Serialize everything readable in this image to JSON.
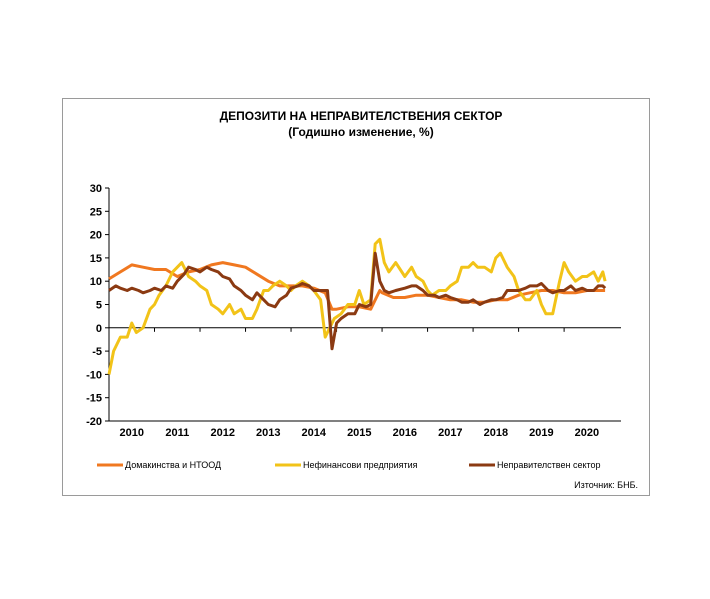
{
  "chart_data": {
    "type": "line",
    "title": "ДЕПОЗИТИ НА НЕПРАВИТЕЛСТВЕНИЯ СЕКТОР",
    "subtitle": "(Годишно изменение, %)",
    "source": "Източник: БНБ.",
    "ylim": [
      -20,
      30
    ],
    "yticks": [
      "30",
      "25",
      "20",
      "15",
      "10",
      "5",
      "0",
      "-5",
      "-10",
      "-15",
      "-20"
    ],
    "xlim": [
      2009.5,
      2020.75
    ],
    "xticks": [
      {
        "label": "2010",
        "x": 2010.0
      },
      {
        "label": "2011",
        "x": 2011.0
      },
      {
        "label": "2012",
        "x": 2012.0
      },
      {
        "label": "2013",
        "x": 2013.0
      },
      {
        "label": "2014",
        "x": 2014.0
      },
      {
        "label": "2015",
        "x": 2015.0
      },
      {
        "label": "2016",
        "x": 2016.0
      },
      {
        "label": "2017",
        "x": 2017.0
      },
      {
        "label": "2018",
        "x": 2018.0
      },
      {
        "label": "2019",
        "x": 2019.0
      },
      {
        "label": "2020",
        "x": 2020.0
      }
    ],
    "grid": false,
    "legend_position": "bottom",
    "series": [
      {
        "name": "Домакинства и НТООД",
        "color": "#F07820",
        "x": [
          2009.5,
          2009.75,
          2010.0,
          2010.25,
          2010.5,
          2010.75,
          2011.0,
          2011.25,
          2011.5,
          2011.75,
          2012.0,
          2012.25,
          2012.5,
          2012.75,
          2013.0,
          2013.25,
          2013.5,
          2013.75,
          2014.0,
          2014.25,
          2014.4,
          2014.5,
          2014.75,
          2015.0,
          2015.25,
          2015.45,
          2015.5,
          2015.75,
          2016.0,
          2016.25,
          2016.5,
          2016.75,
          2017.0,
          2017.25,
          2017.5,
          2017.75,
          2018.0,
          2018.25,
          2018.5,
          2018.75,
          2019.0,
          2019.25,
          2019.5,
          2019.75,
          2020.0,
          2020.25,
          2020.4
        ],
        "y": [
          10.5,
          12,
          13.5,
          13,
          12.5,
          12.5,
          11,
          12,
          12.5,
          13.5,
          14,
          13.5,
          13,
          11.5,
          10,
          9,
          9,
          9,
          8.5,
          7.5,
          4,
          4,
          4.5,
          4.5,
          4,
          8,
          7.5,
          6.5,
          6.5,
          7,
          7,
          6.5,
          6,
          6,
          5.5,
          5.5,
          6,
          6,
          7,
          7.5,
          8,
          8,
          7.5,
          7.5,
          8,
          8,
          8
        ]
      },
      {
        "name": "Нефинансови предприятия",
        "color": "#F2C318",
        "x": [
          2009.5,
          2009.6,
          2009.75,
          2009.9,
          2010.0,
          2010.1,
          2010.25,
          2010.4,
          2010.5,
          2010.6,
          2010.75,
          2010.9,
          2011.0,
          2011.1,
          2011.25,
          2011.4,
          2011.5,
          2011.65,
          2011.75,
          2011.9,
          2012.0,
          2012.15,
          2012.25,
          2012.4,
          2012.5,
          2012.65,
          2012.75,
          2012.9,
          2013.0,
          2013.1,
          2013.25,
          2013.4,
          2013.5,
          2013.6,
          2013.75,
          2013.9,
          2014.0,
          2014.15,
          2014.25,
          2014.35,
          2014.45,
          2014.6,
          2014.75,
          2014.9,
          2015.0,
          2015.1,
          2015.25,
          2015.35,
          2015.45,
          2015.55,
          2015.65,
          2015.8,
          2016.0,
          2016.15,
          2016.25,
          2016.4,
          2016.5,
          2016.6,
          2016.75,
          2016.9,
          2017.0,
          2017.15,
          2017.25,
          2017.4,
          2017.5,
          2017.6,
          2017.75,
          2017.9,
          2018.0,
          2018.1,
          2018.25,
          2018.4,
          2018.5,
          2018.65,
          2018.75,
          2018.9,
          2019.0,
          2019.1,
          2019.25,
          2019.4,
          2019.5,
          2019.6,
          2019.75,
          2019.9,
          2020.0,
          2020.15,
          2020.25,
          2020.35,
          2020.4
        ],
        "y": [
          -10,
          -5,
          -2,
          -2,
          1,
          -1,
          0,
          4,
          5,
          7,
          9,
          12,
          13,
          14,
          11,
          10,
          9,
          8,
          5,
          4,
          3,
          5,
          3,
          4,
          2,
          2,
          4,
          8,
          8,
          9,
          10,
          9,
          8,
          9,
          10,
          9,
          8,
          6,
          -2,
          0,
          2,
          3,
          5,
          5,
          8,
          5,
          6,
          18,
          19,
          14,
          12,
          14,
          11,
          13,
          11,
          10,
          8,
          7,
          8,
          8,
          9,
          10,
          13,
          13,
          14,
          13,
          13,
          12,
          15,
          16,
          13,
          11,
          8,
          6,
          6,
          8,
          5,
          3,
          3,
          10,
          14,
          12,
          10,
          11,
          11,
          12,
          10,
          12,
          10
        ]
      },
      {
        "name": "Неправителствен сектор",
        "color": "#8B3A12",
        "x": [
          2009.5,
          2009.65,
          2009.75,
          2009.9,
          2010.0,
          2010.15,
          2010.25,
          2010.4,
          2010.5,
          2010.65,
          2010.75,
          2010.9,
          2011.0,
          2011.15,
          2011.25,
          2011.4,
          2011.5,
          2011.65,
          2011.75,
          2011.9,
          2012.0,
          2012.15,
          2012.25,
          2012.4,
          2012.5,
          2012.65,
          2012.75,
          2012.9,
          2013.0,
          2013.15,
          2013.25,
          2013.4,
          2013.5,
          2013.65,
          2013.75,
          2013.9,
          2014.0,
          2014.15,
          2014.3,
          2014.4,
          2014.5,
          2014.6,
          2014.75,
          2014.9,
          2015.0,
          2015.15,
          2015.25,
          2015.35,
          2015.45,
          2015.55,
          2015.65,
          2015.8,
          2016.0,
          2016.15,
          2016.25,
          2016.4,
          2016.5,
          2016.65,
          2016.75,
          2016.9,
          2017.0,
          2017.15,
          2017.25,
          2017.4,
          2017.5,
          2017.65,
          2017.75,
          2017.9,
          2018.0,
          2018.15,
          2018.25,
          2018.4,
          2018.5,
          2018.65,
          2018.75,
          2018.9,
          2019.0,
          2019.15,
          2019.25,
          2019.4,
          2019.5,
          2019.65,
          2019.75,
          2019.9,
          2020.0,
          2020.15,
          2020.25,
          2020.35,
          2020.4
        ],
        "y": [
          8,
          9,
          8.5,
          8,
          8.5,
          8,
          7.5,
          8,
          8.5,
          8,
          9,
          8.5,
          10,
          11.5,
          13,
          12.5,
          12,
          13,
          12.5,
          12,
          11,
          10.5,
          9,
          8,
          7,
          6,
          7.5,
          6,
          5,
          4.5,
          6,
          7,
          8.5,
          9,
          9.5,
          9,
          8,
          8,
          8,
          -4.5,
          1,
          2,
          3,
          3,
          5,
          4.5,
          5,
          16,
          10,
          8,
          7.5,
          8,
          8.5,
          9,
          9,
          8,
          7,
          7,
          6.5,
          7,
          6.5,
          6,
          5.5,
          5.5,
          6,
          5,
          5.5,
          6,
          6,
          6.5,
          8,
          8,
          8,
          8.5,
          9,
          9,
          9.5,
          8,
          7.5,
          8,
          8,
          9,
          8,
          8.5,
          8,
          8,
          9,
          9,
          8.5
        ]
      }
    ]
  }
}
